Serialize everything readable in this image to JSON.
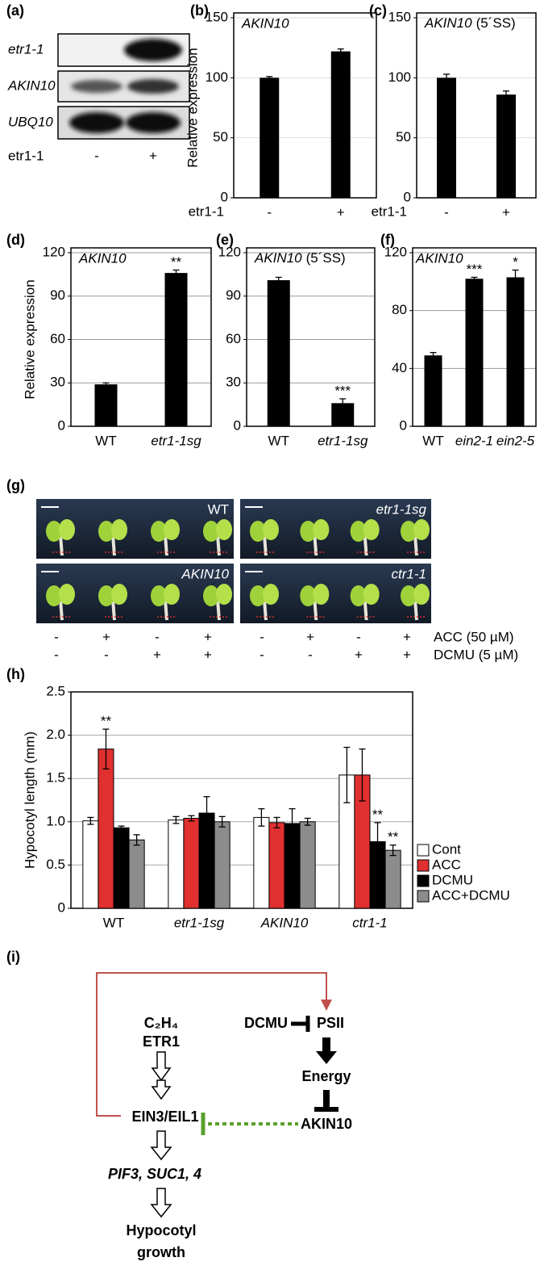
{
  "panel_labels": [
    "(a)",
    "(b)",
    "(c)",
    "(d)",
    "(e)",
    "(f)",
    "(g)",
    "(h)",
    "(i)"
  ],
  "gel": {
    "rows": [
      "etr1-1",
      "AKIN10",
      "UBQ10"
    ],
    "lane_title": "etr1-1",
    "lanes": [
      "-",
      "+"
    ]
  },
  "chart_data": [
    {
      "type": "bar",
      "title": "AKIN10",
      "y_label": "Relative expression",
      "x_label": "etr1-1",
      "categories": [
        "-",
        "+"
      ],
      "values": [
        100,
        122
      ],
      "errors": [
        1,
        2
      ],
      "color": "#000000",
      "ylim": [
        0,
        150
      ],
      "yticks": [
        0,
        50,
        100,
        150
      ],
      "grid": true,
      "grid_color": "#dddddd"
    },
    {
      "type": "bar",
      "title": "AKIN10",
      "title_suffix": "(5´SS)",
      "x_label": "etr1-1",
      "categories": [
        "-",
        "+"
      ],
      "values": [
        100,
        86
      ],
      "errors": [
        3,
        3
      ],
      "color": "#000000",
      "ylim": [
        0,
        150
      ],
      "yticks": [
        0,
        50,
        100,
        150
      ],
      "grid": true,
      "grid_color": "#dddddd"
    },
    {
      "type": "bar",
      "title": "AKIN10",
      "y_label": "Relative expression",
      "categories": [
        "WT",
        "etr1-1sg"
      ],
      "category_italic": [
        false,
        true
      ],
      "values": [
        29,
        106
      ],
      "errors": [
        1,
        2
      ],
      "significance": [
        null,
        "**"
      ],
      "color": "#000000",
      "ylim": [
        0,
        120
      ],
      "yticks": [
        0,
        30,
        60,
        90,
        120
      ],
      "grid": true,
      "grid_color": "#999999"
    },
    {
      "type": "bar",
      "title": "AKIN10",
      "title_suffix": "(5´SS)",
      "categories": [
        "WT",
        "etr1-1sg"
      ],
      "category_italic": [
        false,
        true
      ],
      "values": [
        101,
        16
      ],
      "errors": [
        2,
        3
      ],
      "significance": [
        null,
        "***"
      ],
      "color": "#000000",
      "ylim": [
        0,
        120
      ],
      "yticks": [
        0,
        30,
        60,
        90,
        120
      ],
      "grid": true,
      "grid_color": "#999999"
    },
    {
      "type": "bar",
      "title": "AKIN10",
      "categories": [
        "WT",
        "ein2-1",
        "ein2-5"
      ],
      "category_italic": [
        false,
        true,
        true
      ],
      "values": [
        49,
        102,
        103
      ],
      "errors": [
        2,
        1,
        5
      ],
      "significance": [
        null,
        "***",
        "*"
      ],
      "color": "#000000",
      "ylim": [
        0,
        120
      ],
      "yticks": [
        0,
        40,
        80,
        120
      ],
      "grid": true,
      "grid_color": "#999999"
    },
    {
      "type": "grouped_bar",
      "y_label": "Hypocotyl length (mm)",
      "categories": [
        "WT",
        "etr1-1sg",
        "AKIN10",
        "ctr1-1"
      ],
      "category_italic": [
        false,
        true,
        true,
        true
      ],
      "series": [
        {
          "name": "Cont",
          "color": "#ffffff",
          "values": [
            1.01,
            1.02,
            1.05,
            1.54
          ],
          "errors": [
            0.04,
            0.04,
            0.1,
            0.32
          ]
        },
        {
          "name": "ACC",
          "color": "#e03030",
          "values": [
            1.84,
            1.04,
            0.99,
            1.54
          ],
          "errors": [
            0.23,
            0.03,
            0.06,
            0.3
          ],
          "significance": [
            "**",
            null,
            null,
            null
          ]
        },
        {
          "name": "DCMU",
          "color": "#000000",
          "values": [
            0.93,
            1.1,
            0.98,
            0.77
          ],
          "errors": [
            0.02,
            0.19,
            0.17,
            0.22
          ],
          "significance": [
            null,
            null,
            null,
            "**"
          ]
        },
        {
          "name": "ACC+DCMU",
          "color": "#8c8c8c",
          "values": [
            0.79,
            1.0,
            1.0,
            0.67
          ],
          "errors": [
            0.06,
            0.06,
            0.04,
            0.06
          ],
          "significance": [
            null,
            null,
            null,
            "**"
          ]
        }
      ],
      "ylim": [
        0,
        2.5
      ],
      "yticks": [
        0,
        0.5,
        {
          "value": 1,
          "label": "1.0"
        },
        1.5,
        {
          "value": 2,
          "label": "2.0"
        },
        2.5
      ],
      "grid": true,
      "grid_color": "#aaaaaa",
      "legend": "right"
    }
  ],
  "seedlings": {
    "panels": [
      "WT",
      "etr1-1sg",
      "AKIN10",
      "ctr1-1"
    ],
    "panel_italic": [
      false,
      true,
      true,
      true
    ],
    "treatments": [
      {
        "name": "ACC (50 µM)",
        "levels": [
          "-",
          "+",
          "-",
          "+"
        ]
      },
      {
        "name": "DCMU (5 µM)",
        "levels": [
          "-",
          "-",
          "+",
          "+"
        ]
      }
    ]
  },
  "diagram": {
    "nodes": [
      "C₂H₄",
      "ETR1",
      "EIN3/EIL1",
      "PIF3, SUC1, 4",
      "Hypocotyl",
      "growth",
      "DCMU",
      "PSII",
      "Energy",
      "AKIN10"
    ]
  }
}
